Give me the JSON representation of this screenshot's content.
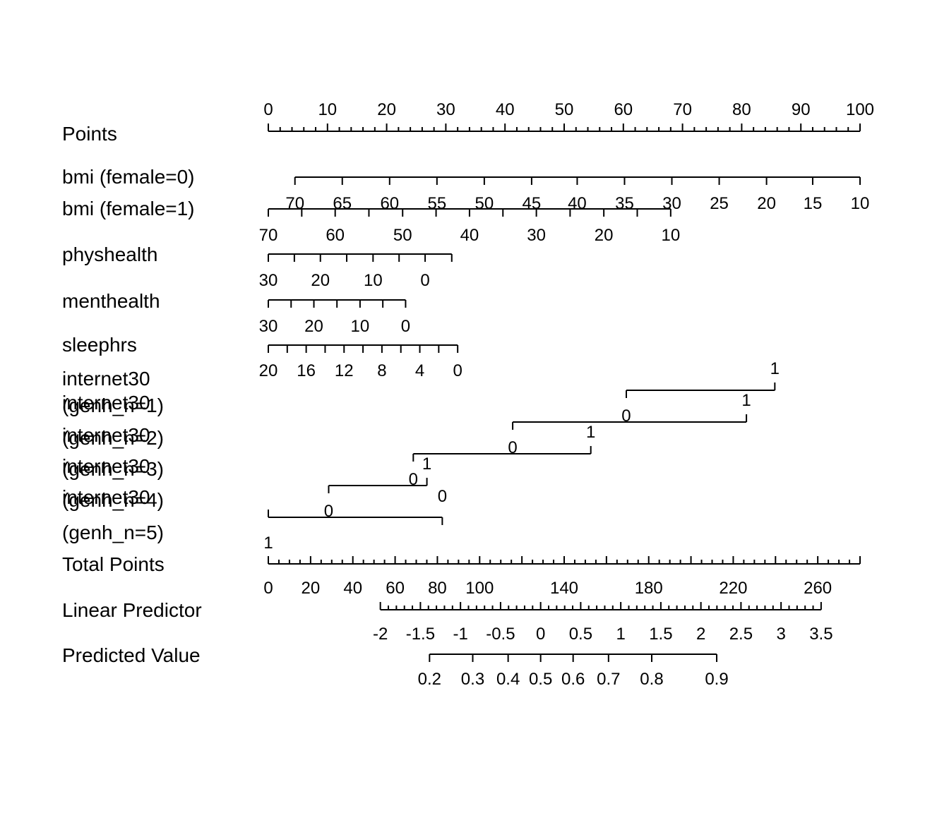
{
  "chart_data": {
    "type": "nomogram",
    "title": "",
    "axes": [
      {
        "label": "Points",
        "ticks": [
          {
            "label": "0",
            "points": 0
          },
          {
            "label": "10",
            "points": 10
          },
          {
            "label": "20",
            "points": 20
          },
          {
            "label": "30",
            "points": 30
          },
          {
            "label": "40",
            "points": 40
          },
          {
            "label": "50",
            "points": 50
          },
          {
            "label": "60",
            "points": 60
          },
          {
            "label": "70",
            "points": 70
          },
          {
            "label": "80",
            "points": 80
          },
          {
            "label": "90",
            "points": 90
          },
          {
            "label": "100",
            "points": 100
          }
        ],
        "minor_step": 2
      },
      {
        "label": "bmi (female=0)",
        "ticks": [
          {
            "label": "70",
            "points": 4.5
          },
          {
            "label": "65",
            "points": 12.5
          },
          {
            "label": "60",
            "points": 20.5
          },
          {
            "label": "55",
            "points": 28.5
          },
          {
            "label": "50",
            "points": 36.5
          },
          {
            "label": "45",
            "points": 44.5
          },
          {
            "label": "40",
            "points": 52.2
          },
          {
            "label": "35",
            "points": 60.2
          },
          {
            "label": "30",
            "points": 68.2
          },
          {
            "label": "25",
            "points": 76.2
          },
          {
            "label": "20",
            "points": 84.2
          },
          {
            "label": "15",
            "points": 92.0
          },
          {
            "label": "10",
            "points": 100
          }
        ]
      },
      {
        "label": "bmi (female=1)",
        "ticks": [
          {
            "label": "70",
            "points": 0
          },
          {
            "label": "60",
            "points": 11.3
          },
          {
            "label": "50",
            "points": 22.7
          },
          {
            "label": "40",
            "points": 34.0
          },
          {
            "label": "30",
            "points": 45.3
          },
          {
            "label": "20",
            "points": 56.7
          },
          {
            "label": "10",
            "points": 68.0
          }
        ],
        "minor_every": 5
      },
      {
        "label": "physhealth",
        "ticks": [
          {
            "label": "30",
            "points": 0
          },
          {
            "label": "20",
            "points": 8.8
          },
          {
            "label": "10",
            "points": 17.7
          },
          {
            "label": "0",
            "points": 26.5
          }
        ],
        "minor_every": 5,
        "end_points": 31
      },
      {
        "label": "menthealth",
        "ticks": [
          {
            "label": "30",
            "points": 0
          },
          {
            "label": "20",
            "points": 7.7
          },
          {
            "label": "10",
            "points": 15.5
          },
          {
            "label": "0",
            "points": 23.2
          }
        ],
        "minor_every": 5
      },
      {
        "label": "sleephrs",
        "ticks": [
          {
            "label": "20",
            "points": 0
          },
          {
            "label": "16",
            "points": 6.4
          },
          {
            "label": "12",
            "points": 12.8
          },
          {
            "label": "8",
            "points": 19.2
          },
          {
            "label": "4",
            "points": 25.6
          },
          {
            "label": "0",
            "points": 32.0
          }
        ],
        "minor_every": 2
      }
    ],
    "internet30": {
      "label_lines": [
        "internet30",
        "(genh_n=1)",
        "internet30",
        "(genh_n=2)",
        "internet30",
        "(genh_n=3)",
        "internet30",
        "(genh_n=4)",
        "internet30",
        "(genh_n=5)"
      ],
      "rows": [
        {
          "zero": 60.5,
          "one": 85.6
        },
        {
          "zero": 41.3,
          "one": 80.8
        },
        {
          "zero": 24.5,
          "one": 54.5
        },
        {
          "zero": 10.2,
          "one": 26.8
        },
        {
          "zero": 29.4,
          "one": 0
        }
      ],
      "tick_labels": {
        "zero": "0",
        "one": "1"
      }
    },
    "total_points": {
      "label": "Total Points",
      "ticks": [
        {
          "label": "0",
          "value": 0
        },
        {
          "label": "20",
          "value": 20
        },
        {
          "label": "40",
          "value": 40
        },
        {
          "label": "60",
          "value": 60
        },
        {
          "label": "80",
          "value": 80
        },
        {
          "label": "100",
          "value": 100
        },
        {
          "label": "140",
          "value": 140
        },
        {
          "label": "180",
          "value": 180
        },
        {
          "label": "220",
          "value": 220
        },
        {
          "label": "260",
          "value": 260
        }
      ],
      "range": [
        0,
        280
      ],
      "minor_step": 5
    },
    "linear_predictor": {
      "label": "Linear Predictor",
      "ticks": [
        {
          "label": "-2",
          "value": -2
        },
        {
          "label": "-1.5",
          "value": -1.5
        },
        {
          "label": "-1",
          "value": -1
        },
        {
          "label": "-0.5",
          "value": -0.5
        },
        {
          "label": "0",
          "value": 0
        },
        {
          "label": "0.5",
          "value": 0.5
        },
        {
          "label": "1",
          "value": 1
        },
        {
          "label": "1.5",
          "value": 1.5
        },
        {
          "label": "2",
          "value": 2
        },
        {
          "label": "2.5",
          "value": 2.5
        },
        {
          "label": "3",
          "value": 3
        },
        {
          "label": "3.5",
          "value": 3.5
        }
      ],
      "lp_at_zero_total": -3.398,
      "lp_per_total_point": 0.02637,
      "minor_step": 0.1
    },
    "predicted_value": {
      "label": "Predicted Value",
      "ticks": [
        {
          "label": "0.2",
          "value": 0.2
        },
        {
          "label": "0.3",
          "value": 0.3
        },
        {
          "label": "0.4",
          "value": 0.4
        },
        {
          "label": "0.5",
          "value": 0.5
        },
        {
          "label": "0.6",
          "value": 0.6
        },
        {
          "label": "0.7",
          "value": 0.7
        },
        {
          "label": "0.8",
          "value": 0.8
        },
        {
          "label": "0.9",
          "value": 0.9
        }
      ]
    }
  }
}
